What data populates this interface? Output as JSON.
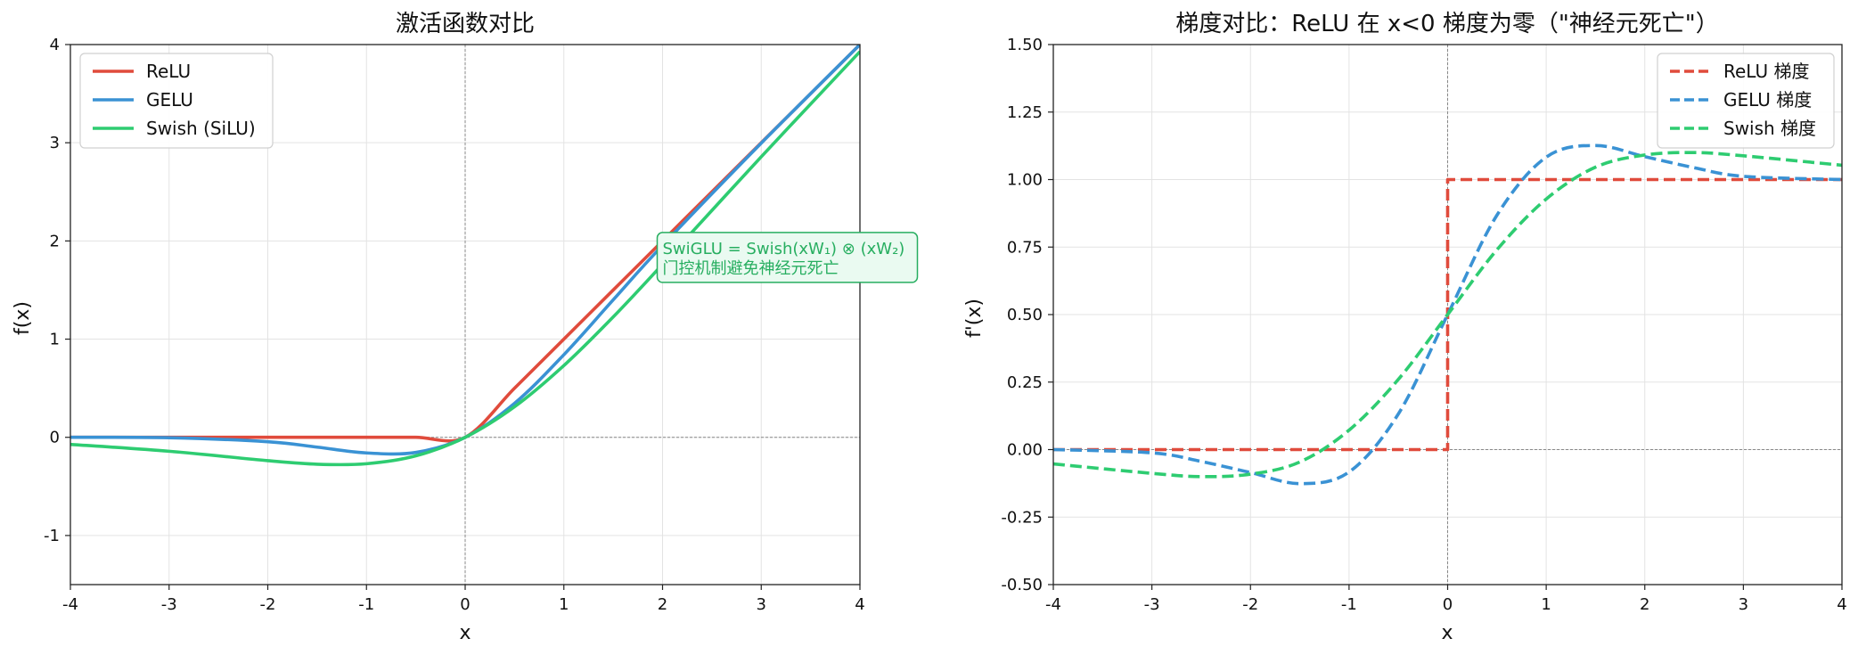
{
  "chart_data": [
    {
      "type": "line",
      "title": "激活函数对比",
      "xlabel": "x",
      "ylabel": "f(x)",
      "xlim": [
        -4,
        4
      ],
      "ylim": [
        -1.5,
        4
      ],
      "grid": true,
      "legend_position": "top-left",
      "x_ticks": [
        -4,
        -3,
        -2,
        -1,
        0,
        1,
        2,
        3,
        4
      ],
      "x_tick_labels": [
        "-4",
        "-3",
        "-2",
        "-1",
        "0",
        "1",
        "2",
        "3",
        "4"
      ],
      "y_ticks": [
        -1,
        0,
        1,
        2,
        3,
        4
      ],
      "y_tick_labels": [
        "-1",
        "0",
        "1",
        "2",
        "3",
        "4"
      ],
      "reference_lines": {
        "x": 0,
        "y": 0
      },
      "series": [
        {
          "name": "ReLU",
          "color": "#e04b3c",
          "style": "solid",
          "x": [
            -4,
            -3,
            -2,
            -1.5,
            -1,
            -0.5,
            0,
            0.5,
            1,
            1.5,
            2,
            3,
            4
          ],
          "y": [
            0,
            0,
            0,
            0,
            0,
            0,
            0,
            0.5,
            1,
            1.5,
            2,
            3,
            4
          ]
        },
        {
          "name": "GELU",
          "color": "#3a92d4",
          "style": "solid",
          "x": [
            -4,
            -3,
            -2,
            -1.5,
            -1,
            -0.5,
            0,
            0.5,
            1,
            1.5,
            2,
            3,
            4
          ],
          "y": [
            0,
            -0.004,
            -0.045,
            -0.1,
            -0.159,
            -0.154,
            0,
            0.346,
            0.841,
            1.4,
            1.955,
            2.996,
            4
          ]
        },
        {
          "name": "Swish (SiLU)",
          "color": "#2ecc71",
          "style": "solid",
          "x": [
            -4,
            -3,
            -2,
            -1.5,
            -1,
            -0.5,
            0,
            0.5,
            1,
            1.5,
            2,
            3,
            4
          ],
          "y": [
            -0.072,
            -0.142,
            -0.238,
            -0.274,
            -0.269,
            -0.189,
            0,
            0.311,
            0.731,
            1.226,
            1.762,
            2.857,
            3.928
          ]
        }
      ],
      "annotation": {
        "lines": [
          "SwiGLU = Swish(xW₁) ⊗ (xW₂)",
          "门控机制避免神经元死亡"
        ],
        "x": 2,
        "y": 1.75,
        "color": "#27ae60",
        "background": "#eafaf1"
      }
    },
    {
      "type": "line",
      "title": "梯度对比：ReLU 在 x<0 梯度为零（\"神经元死亡\"）",
      "xlabel": "x",
      "ylabel": "f'(x)",
      "xlim": [
        -4,
        4
      ],
      "ylim": [
        -0.5,
        1.5
      ],
      "grid": true,
      "legend_position": "top-right",
      "x_ticks": [
        -4,
        -3,
        -2,
        -1,
        0,
        1,
        2,
        3,
        4
      ],
      "x_tick_labels": [
        "-4",
        "-3",
        "-2",
        "-1",
        "0",
        "1",
        "2",
        "3",
        "4"
      ],
      "y_ticks": [
        -0.5,
        -0.25,
        0,
        0.25,
        0.5,
        0.75,
        1,
        1.25,
        1.5
      ],
      "y_tick_labels": [
        "-0.50",
        "-0.25",
        "0.00",
        "0.25",
        "0.50",
        "0.75",
        "1.00",
        "1.25",
        "1.50"
      ],
      "reference_lines": {
        "x": 0,
        "y": 0
      },
      "series": [
        {
          "name": "ReLU 梯度",
          "color": "#e04b3c",
          "style": "dashed",
          "x": [
            -4,
            0,
            0,
            4
          ],
          "y": [
            0,
            0,
            1,
            1
          ]
        },
        {
          "name": "GELU 梯度",
          "color": "#3a92d4",
          "style": "dashed",
          "x": [
            -4,
            -3,
            -2.5,
            -2,
            -1.5,
            -1,
            -0.5,
            0,
            0.5,
            1,
            1.5,
            2,
            2.5,
            3,
            4
          ],
          "y": [
            0,
            -0.012,
            -0.044,
            -0.085,
            -0.126,
            -0.083,
            0.132,
            0.5,
            0.868,
            1.083,
            1.126,
            1.085,
            1.044,
            1.012,
            1
          ]
        },
        {
          "name": "Swish 梯度",
          "color": "#2ecc71",
          "style": "dashed",
          "x": [
            -4,
            -3,
            -2.5,
            -2,
            -1.5,
            -1,
            -0.5,
            0,
            0.5,
            1,
            1.5,
            2,
            2.5,
            3,
            4
          ],
          "y": [
            -0.053,
            -0.088,
            -0.1,
            -0.091,
            -0.046,
            0.072,
            0.26,
            0.5,
            0.74,
            0.928,
            1.046,
            1.091,
            1.1,
            1.088,
            1.053
          ]
        }
      ]
    }
  ]
}
